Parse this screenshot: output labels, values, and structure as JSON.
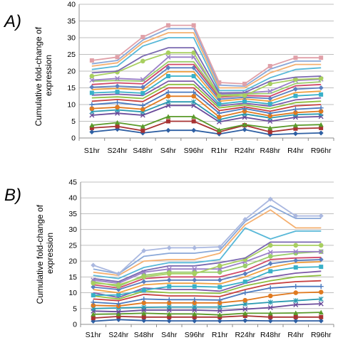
{
  "chart_data": [
    {
      "type": "line",
      "panel_label": "A)",
      "ylabel": "Cumulative fold-change of expression",
      "ylabel_lines": [
        "Cumulative fold-change of",
        "expression"
      ],
      "categories": [
        "S1hr",
        "S24hr",
        "S48hr",
        "S4hr",
        "S96hr",
        "R1hr",
        "R24hr",
        "R48hr",
        "R4hr",
        "R96hr"
      ],
      "ylim": [
        0,
        40
      ],
      "yticks": [
        0,
        5,
        10,
        15,
        20,
        25,
        30,
        35,
        40
      ],
      "grid": true,
      "legend": "none",
      "series": [
        {
          "color": "#2e5fa3",
          "marker": "diamond",
          "values": [
            1.8,
            2.6,
            1.5,
            2.3,
            2.3,
            1.2,
            2.5,
            1.0,
            1.3,
            1.5
          ]
        },
        {
          "color": "#a83232",
          "marker": "square",
          "values": [
            3.0,
            3.5,
            2.2,
            5.0,
            5.0,
            1.8,
            3.8,
            1.8,
            2.8,
            3.0
          ]
        },
        {
          "color": "#5a9a2a",
          "marker": "triangle",
          "values": [
            3.8,
            4.6,
            3.5,
            6.4,
            6.4,
            2.4,
            4.0,
            3.0,
            3.8,
            4.0
          ]
        },
        {
          "color": "#6a4a9a",
          "marker": "x",
          "values": [
            6.8,
            7.4,
            6.8,
            9.7,
            9.7,
            4.8,
            6.2,
            5.0,
            6.2,
            6.4
          ]
        },
        {
          "color": "#2a9ab0",
          "marker": "star",
          "values": [
            7.9,
            8.4,
            7.8,
            10.8,
            10.8,
            5.5,
            7.2,
            6.0,
            7.0,
            7.2
          ]
        },
        {
          "color": "#e07a20",
          "marker": "circle",
          "values": [
            8.8,
            9.2,
            8.6,
            12.5,
            12.5,
            6.3,
            8.0,
            6.6,
            7.6,
            8.0
          ]
        },
        {
          "color": "#4a7abf",
          "marker": "plus",
          "values": [
            10.0,
            10.6,
            9.7,
            13.7,
            13.7,
            7.4,
            8.8,
            7.4,
            8.6,
            9.0
          ]
        },
        {
          "color": "#c74040",
          "marker": "none",
          "values": [
            11.0,
            11.5,
            10.9,
            15.0,
            15.0,
            8.2,
            9.3,
            8.0,
            9.6,
            10.0
          ]
        },
        {
          "color": "#8fbf40",
          "marker": "none",
          "values": [
            12.0,
            12.3,
            11.8,
            16.0,
            16.0,
            9.0,
            9.9,
            8.8,
            10.6,
            11.0
          ]
        },
        {
          "color": "#7e5aa8",
          "marker": "none",
          "values": [
            12.8,
            13.1,
            12.7,
            17.0,
            17.0,
            9.6,
            10.4,
            9.5,
            11.4,
            12.0
          ]
        },
        {
          "color": "#38b0c8",
          "marker": "square",
          "values": [
            13.5,
            13.8,
            13.4,
            18.5,
            18.5,
            10.2,
            11.0,
            10.2,
            12.6,
            13.0
          ]
        },
        {
          "color": "#f0a040",
          "marker": "none",
          "values": [
            14.5,
            14.8,
            14.4,
            19.8,
            19.8,
            11.0,
            11.7,
            11.0,
            13.6,
            14.0
          ]
        },
        {
          "color": "#5b7fc0",
          "marker": "diamond",
          "values": [
            15.2,
            15.5,
            15.2,
            21.0,
            21.0,
            11.6,
            12.2,
            11.8,
            14.6,
            15.0
          ]
        },
        {
          "color": "#d04a6a",
          "marker": "none",
          "values": [
            16.0,
            16.5,
            16.2,
            22.0,
            22.0,
            12.2,
            12.7,
            12.5,
            15.6,
            16.0
          ]
        },
        {
          "color": "#9acd6a",
          "marker": "none",
          "values": [
            17.0,
            17.2,
            17.0,
            22.8,
            22.8,
            12.7,
            13.2,
            13.3,
            16.3,
            16.8
          ]
        },
        {
          "color": "#9a80c8",
          "marker": "x",
          "values": [
            17.3,
            17.8,
            17.5,
            24.2,
            24.2,
            13.1,
            13.5,
            14.0,
            17.2,
            17.6
          ]
        },
        {
          "color": "#a8cf60",
          "marker": "circle",
          "values": [
            18.5,
            19.7,
            23.0,
            25.5,
            25.5,
            12.6,
            12.7,
            16.2,
            17.5,
            17.8
          ]
        },
        {
          "color": "#7a68b0",
          "marker": "none",
          "values": [
            19.5,
            20.0,
            24.5,
            27.0,
            27.0,
            13.5,
            13.6,
            17.0,
            18.2,
            18.5
          ]
        },
        {
          "color": "#58b8d8",
          "marker": "none",
          "values": [
            20.5,
            21.5,
            27.5,
            30.0,
            30.0,
            14.2,
            14.2,
            18.0,
            20.5,
            21.0
          ]
        },
        {
          "color": "#f5b070",
          "marker": "none",
          "values": [
            21.5,
            22.5,
            28.5,
            31.5,
            31.5,
            15.0,
            15.0,
            19.5,
            22.0,
            22.0
          ]
        },
        {
          "color": "#8aa8d8",
          "marker": "none",
          "values": [
            22.2,
            23.2,
            29.3,
            32.7,
            32.7,
            15.8,
            15.5,
            20.6,
            23.0,
            23.0
          ]
        },
        {
          "color": "#e0a0a8",
          "marker": "square",
          "values": [
            23.2,
            24.2,
            30.2,
            33.7,
            33.7,
            16.6,
            16.2,
            21.5,
            24.0,
            24.0
          ]
        }
      ]
    },
    {
      "type": "line",
      "panel_label": "B)",
      "ylabel": "Cumulative fold-change of expression",
      "ylabel_lines": [
        "Cumulative fold-change of",
        "expression"
      ],
      "categories": [
        "S1hr",
        "S24hr",
        "S48hr",
        "S4hr",
        "S96hr",
        "R1hr",
        "R24hr",
        "R48hr",
        "R4hr",
        "R96hr"
      ],
      "ylim": [
        0,
        45
      ],
      "yticks": [
        0,
        5,
        10,
        15,
        20,
        25,
        30,
        35,
        40,
        45
      ],
      "grid": true,
      "legend": "none",
      "series": [
        {
          "color": "#2e5fa3",
          "marker": "diamond",
          "values": [
            1.0,
            1.5,
            1.2,
            1.1,
            1.1,
            1.1,
            1.2,
            1.1,
            1.1,
            1.1
          ]
        },
        {
          "color": "#a83232",
          "marker": "square",
          "values": [
            2.0,
            2.5,
            2.3,
            2.3,
            2.3,
            2.3,
            2.7,
            2.3,
            2.3,
            2.3
          ]
        },
        {
          "color": "#5a9a2a",
          "marker": "triangle",
          "values": [
            3.2,
            3.3,
            3.5,
            3.3,
            3.3,
            3.0,
            3.5,
            3.5,
            3.6,
            3.8
          ]
        },
        {
          "color": "#6a4a9a",
          "marker": "x",
          "values": [
            4.2,
            4.0,
            4.5,
            4.5,
            4.5,
            4.3,
            4.8,
            5.3,
            6.2,
            6.5
          ]
        },
        {
          "color": "#2a9ab0",
          "marker": "star",
          "values": [
            5.0,
            5.2,
            5.4,
            5.5,
            5.5,
            5.5,
            6.4,
            7.0,
            7.5,
            8.0
          ]
        },
        {
          "color": "#e07a20",
          "marker": "circle",
          "values": [
            6.0,
            5.8,
            6.8,
            6.8,
            6.8,
            6.8,
            7.6,
            9.0,
            10.0,
            10.2
          ]
        },
        {
          "color": "#4a7abf",
          "marker": "plus",
          "values": [
            7.0,
            6.5,
            8.0,
            7.8,
            7.8,
            7.7,
            10.0,
            11.5,
            12.0,
            12.0
          ]
        },
        {
          "color": "#c74040",
          "marker": "none",
          "values": [
            8.0,
            7.5,
            9.5,
            9.0,
            9.0,
            8.8,
            11.0,
            12.8,
            13.5,
            13.8
          ]
        },
        {
          "color": "#8fbf40",
          "marker": "none",
          "values": [
            9.0,
            8.0,
            10.5,
            10.0,
            10.0,
            9.8,
            12.2,
            13.8,
            15.0,
            15.5
          ]
        },
        {
          "color": "#7e5aa8",
          "marker": "none",
          "values": [
            10.0,
            8.5,
            11.5,
            11.0,
            11.0,
            10.5,
            13.0,
            15.0,
            16.2,
            16.8
          ]
        },
        {
          "color": "#38b0c8",
          "marker": "square",
          "values": [
            9.2,
            9.3,
            10.8,
            12.0,
            12.0,
            11.8,
            13.5,
            16.8,
            18.0,
            18.2
          ]
        },
        {
          "color": "#f0a040",
          "marker": "none",
          "values": [
            11.0,
            10.0,
            12.5,
            13.0,
            13.0,
            12.8,
            15.0,
            18.0,
            19.5,
            19.8
          ]
        },
        {
          "color": "#5b7fc0",
          "marker": "diamond",
          "values": [
            11.8,
            11.0,
            13.5,
            14.0,
            14.0,
            14.0,
            16.0,
            19.2,
            20.2,
            20.5
          ]
        },
        {
          "color": "#d04a6a",
          "marker": "none",
          "values": [
            12.5,
            11.5,
            14.5,
            15.0,
            15.0,
            15.0,
            17.0,
            20.5,
            21.0,
            21.2
          ]
        },
        {
          "color": "#9acd6a",
          "marker": "circle",
          "values": [
            13.5,
            12.0,
            15.5,
            16.5,
            16.5,
            16.5,
            18.5,
            21.5,
            22.5,
            23.0
          ]
        },
        {
          "color": "#9a80c8",
          "marker": "x",
          "values": [
            14.0,
            13.0,
            16.5,
            17.5,
            17.5,
            17.5,
            19.8,
            22.8,
            23.0,
            23.0
          ]
        },
        {
          "color": "#a8cf60",
          "marker": "circle",
          "values": [
            13.0,
            12.5,
            15.0,
            16.0,
            16.0,
            18.5,
            20.5,
            25.0,
            25.0,
            25.0
          ]
        },
        {
          "color": "#7a68b0",
          "marker": "none",
          "values": [
            14.5,
            13.5,
            17.0,
            18.5,
            18.5,
            19.5,
            21.0,
            26.0,
            26.0,
            26.0
          ]
        },
        {
          "color": "#58b8d8",
          "marker": "none",
          "values": [
            15.5,
            14.5,
            18.0,
            19.5,
            19.5,
            20.5,
            30.5,
            27.0,
            29.5,
            29.5
          ]
        },
        {
          "color": "#f5b070",
          "marker": "none",
          "values": [
            16.5,
            15.5,
            20.0,
            20.5,
            20.5,
            22.5,
            31.5,
            36.2,
            30.5,
            30.5
          ]
        },
        {
          "color": "#8aa8d8",
          "marker": "none",
          "values": [
            17.5,
            16.0,
            21.5,
            22.5,
            22.5,
            23.5,
            32.5,
            37.5,
            33.5,
            33.5
          ]
        },
        {
          "color": "#aab8e0",
          "marker": "diamond",
          "values": [
            18.7,
            16.0,
            23.3,
            24.2,
            24.2,
            24.5,
            33.2,
            39.6,
            34.3,
            34.3
          ]
        }
      ]
    }
  ]
}
